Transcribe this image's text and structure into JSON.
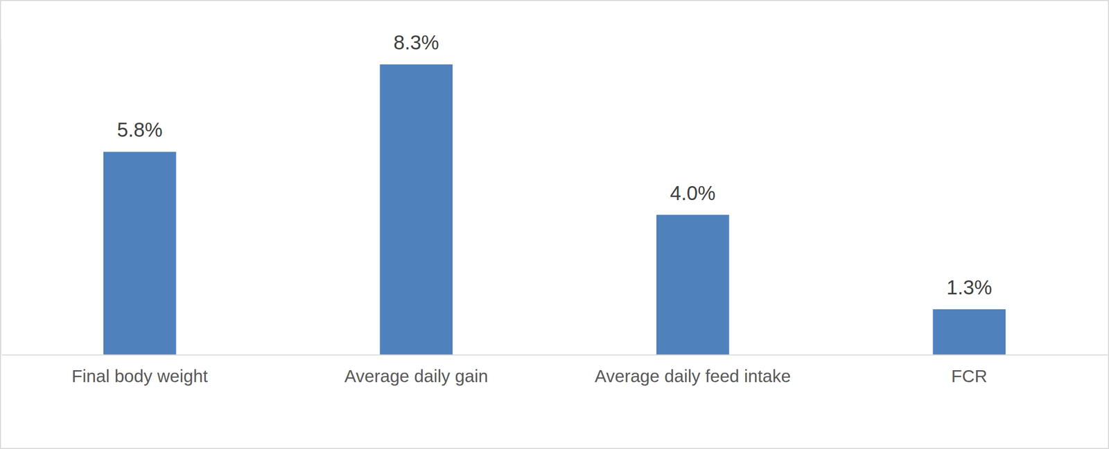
{
  "chart_data": {
    "type": "bar",
    "categories": [
      "Final body weight",
      "Average daily gain",
      "Average daily feed intake",
      "FCR"
    ],
    "values": [
      5.8,
      8.3,
      4.0,
      1.3
    ],
    "value_labels": [
      "5.8%",
      "8.3%",
      "4.0%",
      "1.3%"
    ],
    "color": "#4f81bd",
    "ylim": [
      0,
      9
    ],
    "data_labels": true,
    "tick_labels": "x",
    "grid": false
  }
}
